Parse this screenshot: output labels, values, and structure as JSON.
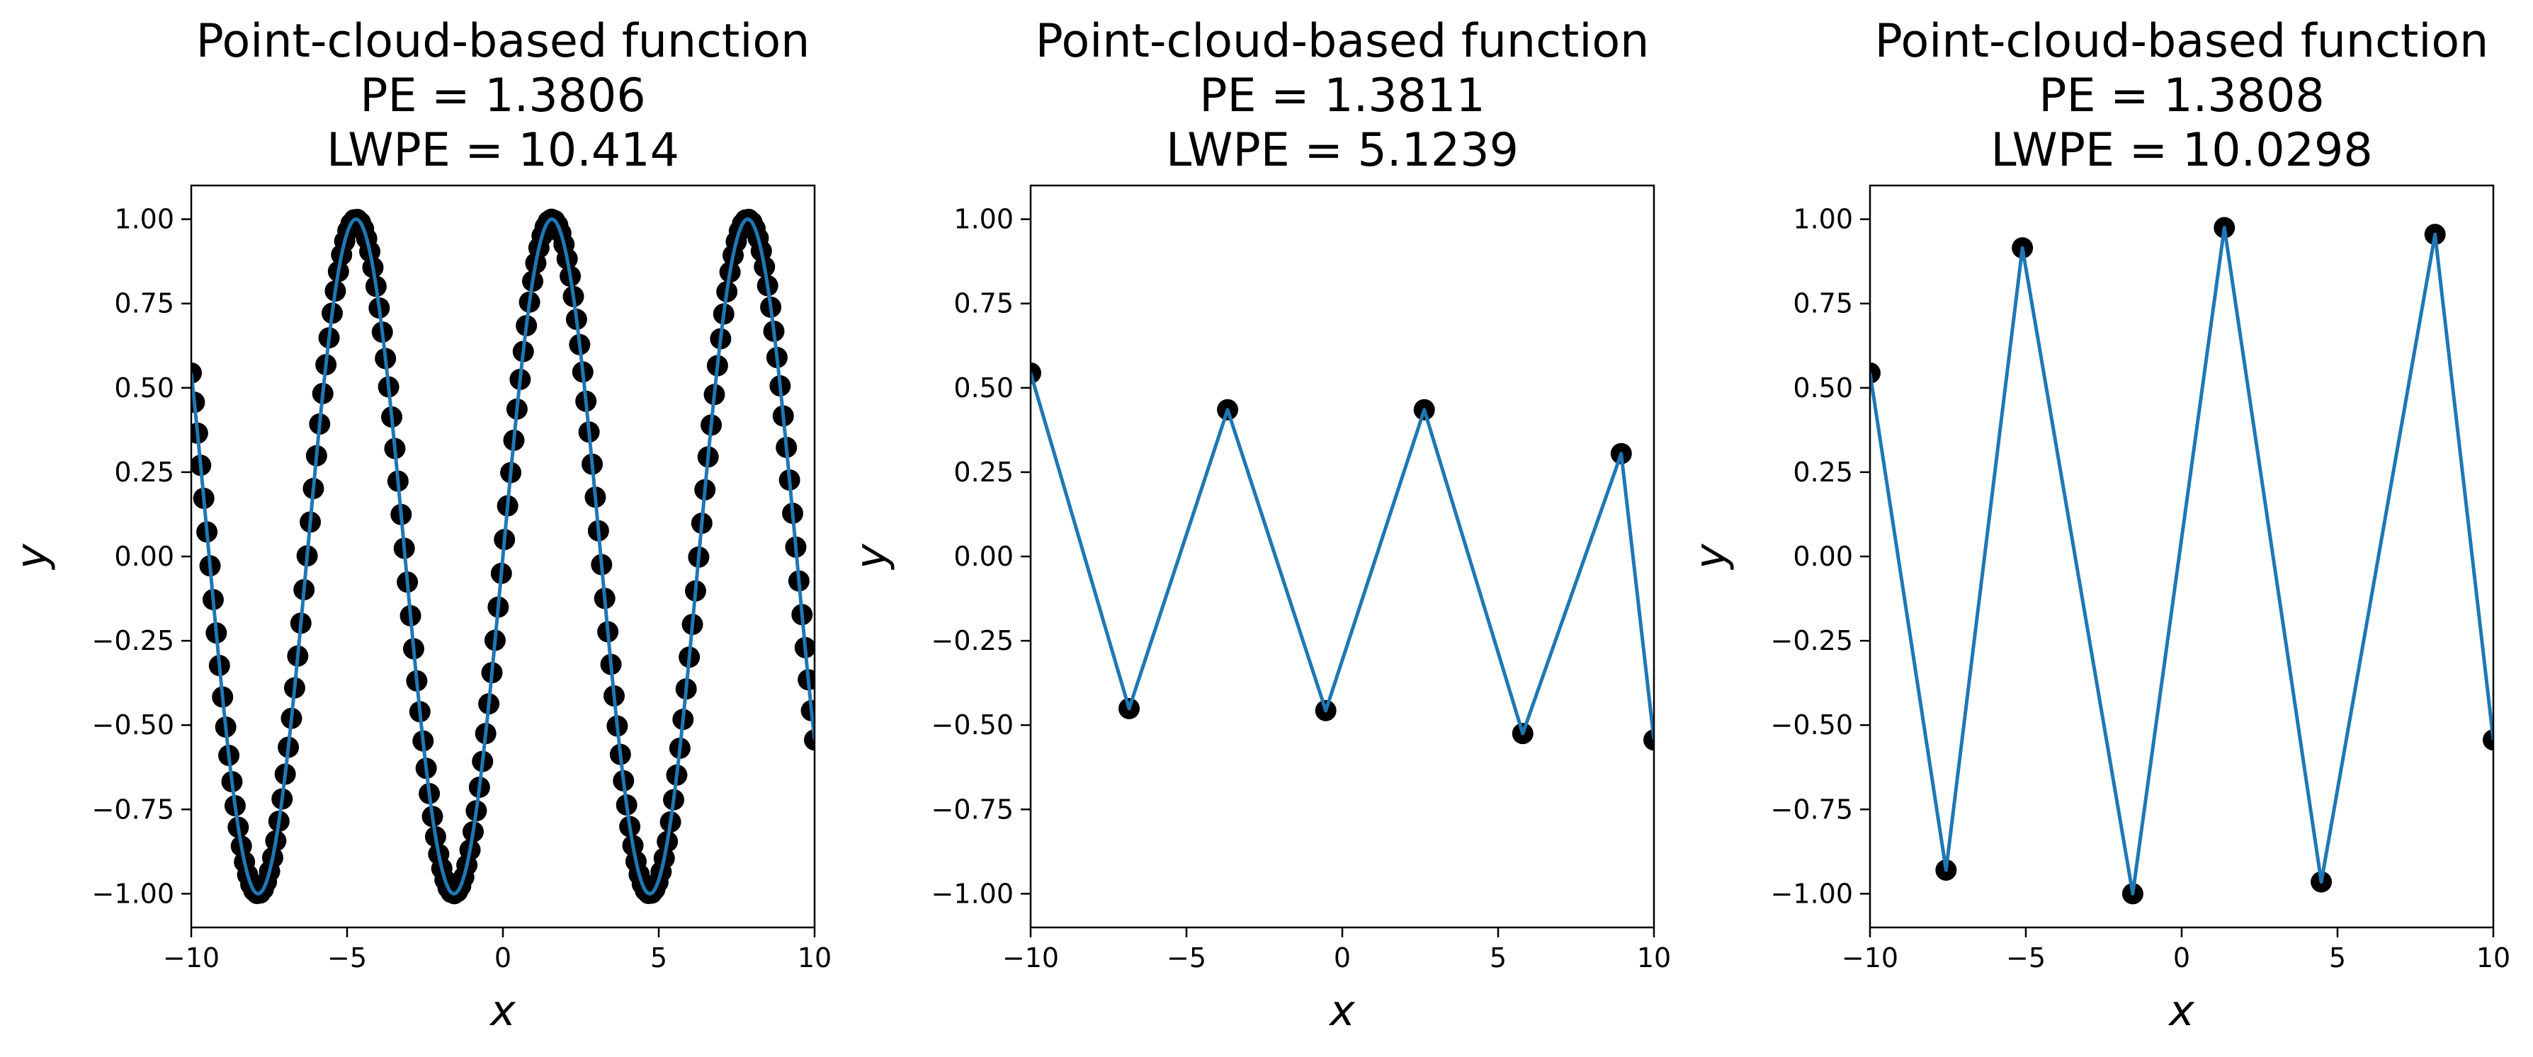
{
  "chart_data": [
    {
      "type": "line",
      "title": [
        "Point-cloud-based function",
        "PE = 1.3806",
        "LWPE = 10.414"
      ],
      "xlabel": "x",
      "ylabel": "y",
      "xlim": [
        -10,
        10
      ],
      "ylim": [
        -1.1,
        1.1
      ],
      "xticks": [
        -10,
        -5,
        0,
        5,
        10
      ],
      "xtick_labels": [
        "−10",
        "−5",
        "0",
        "5",
        "10"
      ],
      "yticks": [
        1.0,
        0.75,
        0.5,
        0.25,
        0.0,
        -0.25,
        -0.5,
        -0.75,
        -1.0
      ],
      "ytick_labels": [
        "1.00",
        "0.75",
        "0.50",
        "0.25",
        "0.00",
        "−0.25",
        "−0.50",
        "−0.75",
        "−1.00"
      ],
      "grid": false,
      "series": [
        {
          "kind": "points",
          "function": "sin(x)",
          "x_range": [
            -10,
            10
          ],
          "count": 200
        },
        {
          "kind": "curve",
          "function": "sin(x)",
          "x_range": [
            -10,
            10
          ]
        }
      ]
    },
    {
      "type": "line",
      "title": [
        "Point-cloud-based function",
        "PE = 1.3811",
        "LWPE = 5.1239"
      ],
      "xlabel": "x",
      "ylabel": "y",
      "xlim": [
        -10,
        10
      ],
      "ylim": [
        -1.1,
        1.1
      ],
      "xticks": [
        -10,
        -5,
        0,
        5,
        10
      ],
      "xtick_labels": [
        "−10",
        "−5",
        "0",
        "5",
        "10"
      ],
      "yticks": [
        1.0,
        0.75,
        0.5,
        0.25,
        0.0,
        -0.25,
        -0.5,
        -0.75,
        -1.0
      ],
      "ytick_labels": [
        "1.00",
        "0.75",
        "0.50",
        "0.25",
        "0.00",
        "−0.25",
        "−0.50",
        "−0.75",
        "−1.00"
      ],
      "grid": false,
      "series": [
        {
          "kind": "points_and_line",
          "x": [
            -10,
            -6.84,
            -3.68,
            -0.53,
            2.63,
            5.79,
            8.95,
            10
          ],
          "y": [
            0.544,
            -0.451,
            0.435,
            -0.457,
            0.435,
            -0.525,
            0.305,
            -0.544
          ]
        }
      ]
    },
    {
      "type": "line",
      "title": [
        "Point-cloud-based function",
        "PE = 1.3808",
        "LWPE = 10.0298"
      ],
      "xlabel": "x",
      "ylabel": "y",
      "xlim": [
        -10,
        10
      ],
      "ylim": [
        -1.1,
        1.1
      ],
      "xticks": [
        -10,
        -5,
        0,
        5,
        10
      ],
      "xtick_labels": [
        "−10",
        "−5",
        "0",
        "5",
        "10"
      ],
      "yticks": [
        1.0,
        0.75,
        0.5,
        0.25,
        0.0,
        -0.25,
        -0.5,
        -0.75,
        -1.0
      ],
      "ytick_labels": [
        "1.00",
        "0.75",
        "0.50",
        "0.25",
        "0.00",
        "−0.25",
        "−0.50",
        "−0.75",
        "−1.00"
      ],
      "grid": false,
      "series": [
        {
          "kind": "points_and_line",
          "x": [
            -10,
            -7.56,
            -5.11,
            -1.57,
            1.37,
            4.48,
            8.13,
            10
          ],
          "y": [
            0.544,
            -0.93,
            0.915,
            -1.0,
            0.975,
            -0.965,
            0.955,
            -0.544
          ]
        }
      ]
    }
  ],
  "colors": {
    "line": "#1f77b4",
    "points": "#000000",
    "axes": "#000000",
    "background": "#ffffff"
  }
}
